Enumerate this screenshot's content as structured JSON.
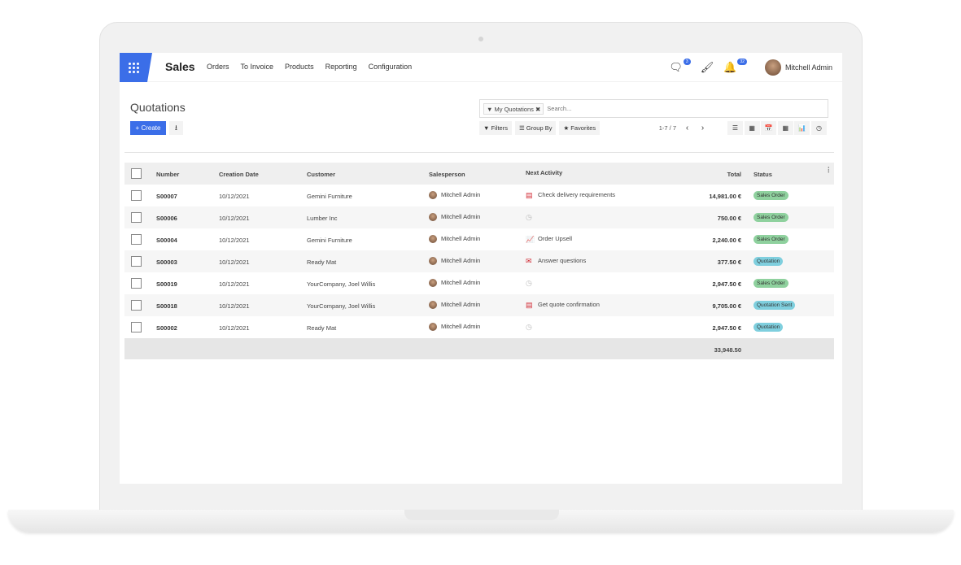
{
  "nav": {
    "app": "Sales",
    "menus": [
      "Orders",
      "To Invoice",
      "Products",
      "Reporting",
      "Configuration"
    ],
    "messages_count": "3",
    "activities_count": "32",
    "user": "Mitchell Admin"
  },
  "page": {
    "title": "Quotations",
    "create_label": "Create"
  },
  "search": {
    "facet": "My Quotations",
    "placeholder": "Search..."
  },
  "filters": {
    "filters": "Filters",
    "group_by": "Group By",
    "favorites": "Favorites"
  },
  "pager": "1-7 / 7",
  "colors": {
    "accent": "#3b6ee8",
    "sales_order": "#8fd19e",
    "quotation": "#7fcfde",
    "activity": "#d0252f"
  },
  "table": {
    "headers": [
      "Number",
      "Creation Date",
      "Customer",
      "Salesperson",
      "Next Activity",
      "Total",
      "Status"
    ],
    "rows": [
      {
        "number": "S00007",
        "date": "10/12/2021",
        "customer": "Gemini Furniture",
        "salesperson": "Mitchell Admin",
        "activity_icon": "task-list-icon",
        "activity": "Check delivery requirements",
        "total": "14,981.00 €",
        "status": "Sales Order"
      },
      {
        "number": "S00006",
        "date": "10/12/2021",
        "customer": "Lumber Inc",
        "salesperson": "Mitchell Admin",
        "activity_icon": "clock-icon",
        "activity": "",
        "total": "750.00 €",
        "status": "Sales Order"
      },
      {
        "number": "S00004",
        "date": "10/12/2021",
        "customer": "Gemini Furniture",
        "salesperson": "Mitchell Admin",
        "activity_icon": "chart-line-icon",
        "activity": "Order Upsell",
        "total": "2,240.00 €",
        "status": "Sales Order"
      },
      {
        "number": "S00003",
        "date": "10/12/2021",
        "customer": "Ready Mat",
        "salesperson": "Mitchell Admin",
        "activity_icon": "envelope-icon",
        "activity": "Answer questions",
        "total": "377.50 €",
        "status": "Quotation"
      },
      {
        "number": "S00019",
        "date": "10/12/2021",
        "customer": "YourCompany, Joel Willis",
        "salesperson": "Mitchell Admin",
        "activity_icon": "clock-icon",
        "activity": "",
        "total": "2,947.50 €",
        "status": "Sales Order"
      },
      {
        "number": "S00018",
        "date": "10/12/2021",
        "customer": "YourCompany, Joel Willis",
        "salesperson": "Mitchell Admin",
        "activity_icon": "task-list-icon",
        "activity": "Get quote confirmation",
        "total": "9,705.00 €",
        "status": "Quotation Sent"
      },
      {
        "number": "S00002",
        "date": "10/12/2021",
        "customer": "Ready Mat",
        "salesperson": "Mitchell Admin",
        "activity_icon": "clock-icon",
        "activity": "",
        "total": "2,947.50 €",
        "status": "Quotation"
      }
    ],
    "sum_total": "33,948.50"
  }
}
